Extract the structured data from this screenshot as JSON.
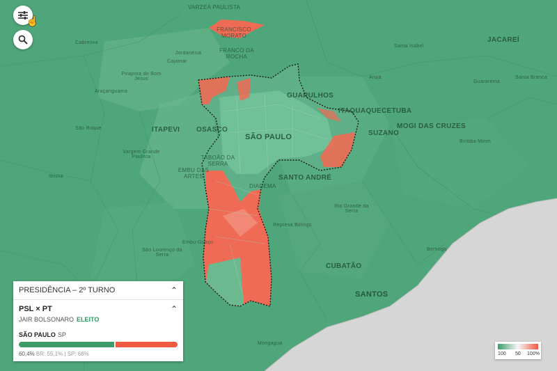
{
  "places": [
    {
      "name": "VARZEA PAULISTA",
      "cls": ""
    },
    {
      "name": "FRANCISCO MORATO",
      "cls": ""
    },
    {
      "name": "FRANCO DA ROCHA",
      "cls": ""
    },
    {
      "name": "Cabreúva",
      "cls": "small"
    },
    {
      "name": "Jordanésia",
      "cls": "small"
    },
    {
      "name": "Cajamar",
      "cls": "small"
    },
    {
      "name": "Pirapora do Bom Jesus",
      "cls": "small"
    },
    {
      "name": "Araçariguama",
      "cls": "small"
    },
    {
      "name": "GUARULHOS",
      "cls": "big"
    },
    {
      "name": "ITAQUAQUECETUBA",
      "cls": "big"
    },
    {
      "name": "Santa Isabel",
      "cls": "small"
    },
    {
      "name": "JACAREÍ",
      "cls": "big"
    },
    {
      "name": "Arujá",
      "cls": "small"
    },
    {
      "name": "Guararema",
      "cls": "small"
    },
    {
      "name": "Santa Branca",
      "cls": "small"
    },
    {
      "name": "São Roque",
      "cls": "small"
    },
    {
      "name": "ITAPEVI",
      "cls": "big"
    },
    {
      "name": "OSASCO",
      "cls": "big"
    },
    {
      "name": "SÃO PAULO",
      "cls": "major"
    },
    {
      "name": "SUZANO",
      "cls": "big"
    },
    {
      "name": "MOGI DAS CRUZES",
      "cls": "big"
    },
    {
      "name": "Biritiba-Mirim",
      "cls": "small"
    },
    {
      "name": "Vargem Grande Paulista",
      "cls": "small"
    },
    {
      "name": "TABOÃO DA SERRA",
      "cls": ""
    },
    {
      "name": "EMBU DAS ARTES",
      "cls": ""
    },
    {
      "name": "SANTO ANDRÉ",
      "cls": "big"
    },
    {
      "name": "DIADEMA",
      "cls": ""
    },
    {
      "name": "Ibiúna",
      "cls": "small"
    },
    {
      "name": "Rio Grande da Serra",
      "cls": "small"
    },
    {
      "name": "Represa Billings",
      "cls": "small"
    },
    {
      "name": "Embu-Guaçu",
      "cls": "small"
    },
    {
      "name": "São Lourenço da Serra",
      "cls": "small"
    },
    {
      "name": "Bertioga",
      "cls": "small"
    },
    {
      "name": "CUBATÃO",
      "cls": "big"
    },
    {
      "name": "SANTOS",
      "cls": "major"
    },
    {
      "name": "Mongaguá",
      "cls": "small"
    }
  ],
  "panel": {
    "header": "PRESIDÊNCIA – 2º TURNO",
    "matchup": "PSL × PT",
    "winner": "JAIR BOLSONARO",
    "winner_status": "ELEITO",
    "region_name": "SÃO PAULO",
    "region_state": "SP",
    "share_percent": 60.4,
    "share_label": "60,4%",
    "comparison": "BR: 55,1% | SP: 68%"
  },
  "legend": {
    "left": "100",
    "mid": "50",
    "right": "100%"
  },
  "colors": {
    "green": "#3d9b68",
    "red": "#ef5a40",
    "sea": "#d6d6d6"
  },
  "icons": {
    "filter": "sliders-icon",
    "search": "search-icon"
  }
}
